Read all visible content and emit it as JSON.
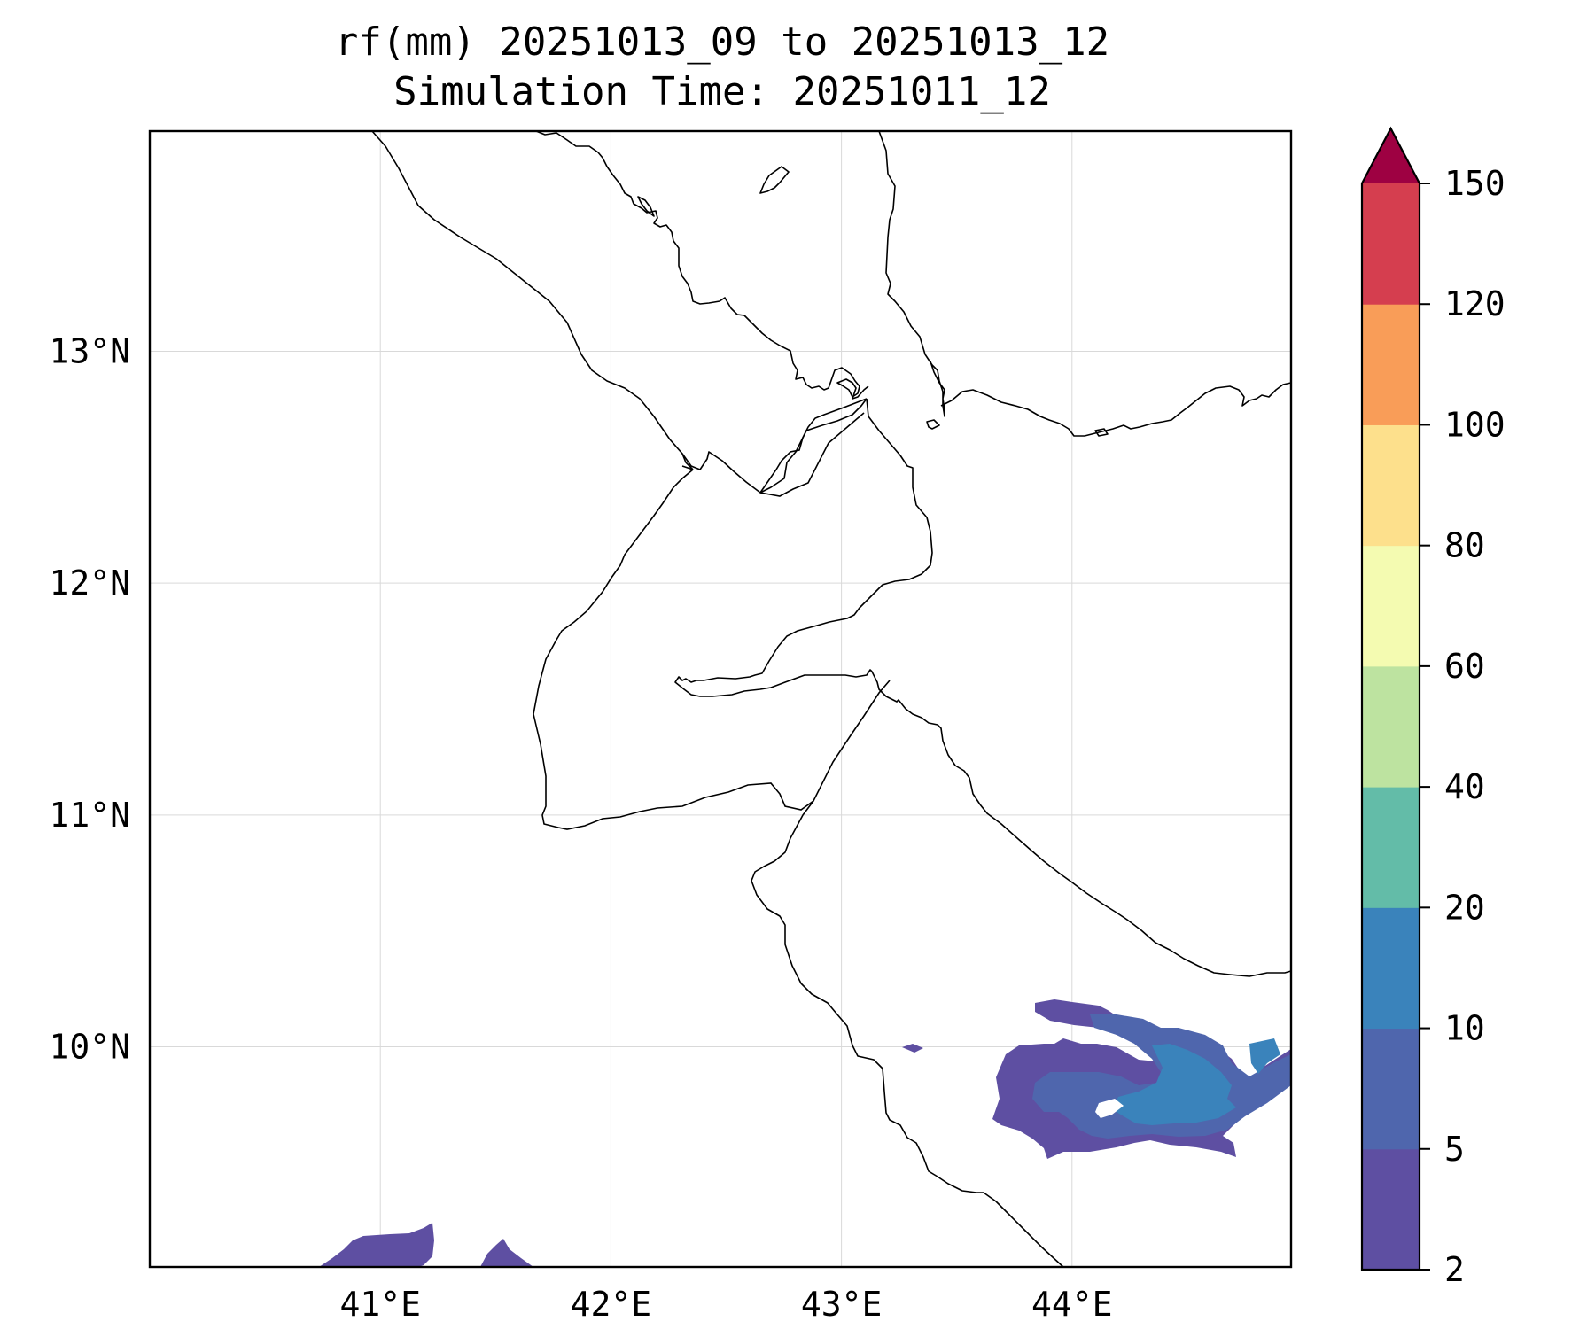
{
  "title": {
    "line1": "rf(mm) 20251013_09 to 20251013_12",
    "line2": "Simulation Time: 20251011_12"
  },
  "map": {
    "lon_range": [
      40.0,
      44.95
    ],
    "lat_range": [
      9.05,
      13.95
    ],
    "lon_ticks": [
      {
        "value": 41,
        "label": "41°E"
      },
      {
        "value": 42,
        "label": "42°E"
      },
      {
        "value": 43,
        "label": "43°E"
      },
      {
        "value": 44,
        "label": "44°E"
      }
    ],
    "lat_ticks": [
      {
        "value": 13,
        "label": "13°N"
      },
      {
        "value": 12,
        "label": "12°N"
      },
      {
        "value": 11,
        "label": "11°N"
      },
      {
        "value": 10,
        "label": "10°N"
      }
    ],
    "gridlines": true
  },
  "colorbar": {
    "levels": [
      {
        "label": "2",
        "color": "#5e4fa2"
      },
      {
        "label": "5",
        "color": "#4f66ad"
      },
      {
        "label": "10",
        "color": "#3a83bb"
      },
      {
        "label": "20",
        "color": "#63bca8"
      },
      {
        "label": "40",
        "color": "#bde3a0"
      },
      {
        "label": "60",
        "color": "#f4fbb1"
      },
      {
        "label": "80",
        "color": "#fde08c"
      },
      {
        "label": "100",
        "color": "#f99d58"
      },
      {
        "label": "120",
        "color": "#d53e4f"
      },
      {
        "label": "150",
        "color": ""
      }
    ],
    "extend_color": "#9e0142"
  }
}
